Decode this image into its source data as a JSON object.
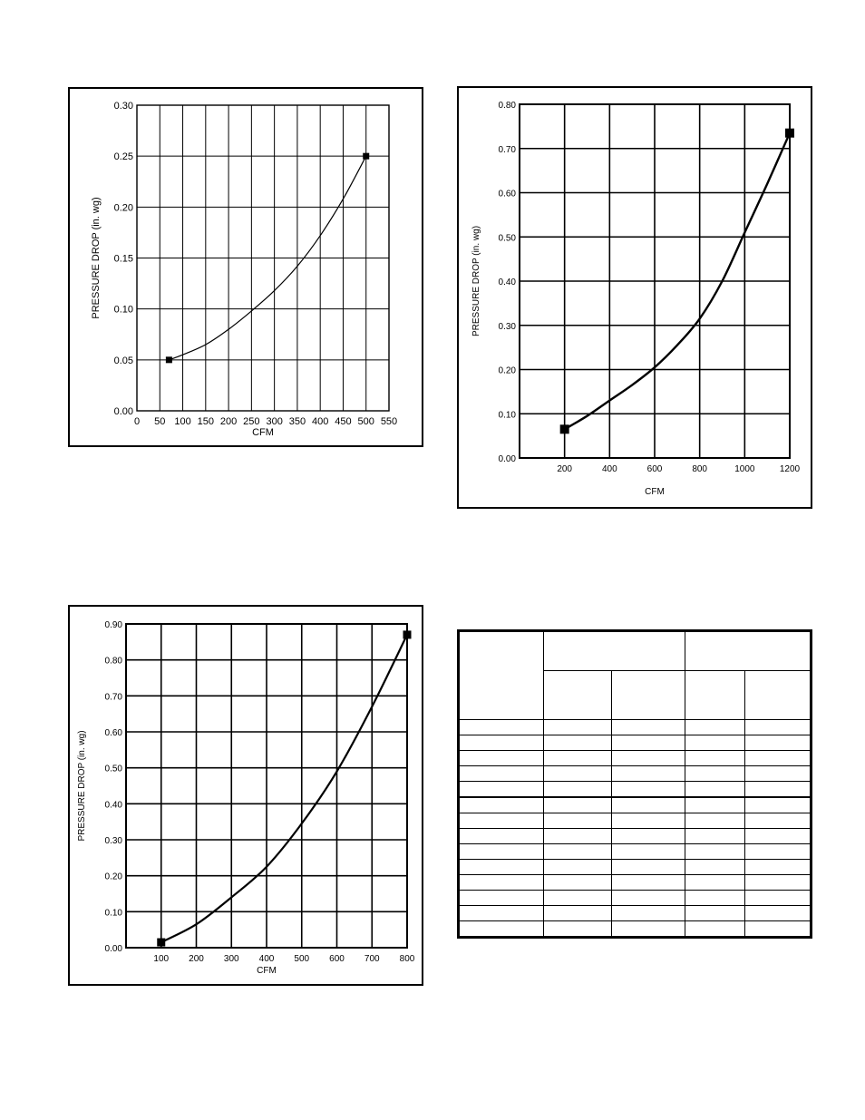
{
  "chart_data": [
    {
      "type": "line",
      "title": "",
      "xlabel": "CFM",
      "ylabel": "PRESSURE DROP (in. wg)",
      "xlim": [
        0,
        550
      ],
      "ylim": [
        0,
        0.3
      ],
      "x_ticks": [
        "0",
        "50",
        "100",
        "150",
        "200",
        "250",
        "300",
        "350",
        "400",
        "450",
        "500",
        "550"
      ],
      "x_tick_values": [
        0,
        50,
        100,
        150,
        200,
        250,
        300,
        350,
        400,
        450,
        500,
        550
      ],
      "y_ticks": [
        "0.00",
        "0.05",
        "0.10",
        "0.15",
        "0.20",
        "0.25",
        "0.30"
      ],
      "y_tick_values": [
        0,
        0.05,
        0.1,
        0.15,
        0.2,
        0.25,
        0.3
      ],
      "grid": true,
      "series": [
        {
          "x": [
            70,
            100,
            150,
            200,
            250,
            300,
            350,
            400,
            450,
            500
          ],
          "y": [
            0.05,
            0.055,
            0.065,
            0.08,
            0.098,
            0.118,
            0.142,
            0.172,
            0.208,
            0.25
          ]
        }
      ],
      "markers": [
        {
          "x": 70,
          "y": 0.05
        },
        {
          "x": 500,
          "y": 0.25
        }
      ]
    },
    {
      "type": "line",
      "title": "",
      "xlabel": "CFM",
      "ylabel": "PRESSURE DROP (in. wg)",
      "xlim": [
        0,
        1200
      ],
      "ylim": [
        0,
        0.8
      ],
      "x_ticks": [
        "200",
        "400",
        "600",
        "800",
        "1000",
        "1200"
      ],
      "x_tick_values": [
        200,
        400,
        600,
        800,
        1000,
        1200
      ],
      "y_ticks": [
        "0.00",
        "0.10",
        "0.20",
        "0.30",
        "0.40",
        "0.50",
        "0.60",
        "0.70",
        "0.80"
      ],
      "y_tick_values": [
        0,
        0.1,
        0.2,
        0.3,
        0.4,
        0.5,
        0.6,
        0.7,
        0.8
      ],
      "grid": true,
      "series": [
        {
          "x": [
            200,
            300,
            400,
            500,
            600,
            700,
            800,
            900,
            1000,
            1100,
            1200
          ],
          "y": [
            0.065,
            0.095,
            0.13,
            0.165,
            0.205,
            0.255,
            0.315,
            0.4,
            0.51,
            0.62,
            0.735
          ]
        }
      ],
      "markers": [
        {
          "x": 200,
          "y": 0.065
        },
        {
          "x": 1200,
          "y": 0.735
        }
      ]
    },
    {
      "type": "line",
      "title": "",
      "xlabel": "CFM",
      "ylabel": "PRESSURE DROP (in. wg)",
      "xlim": [
        0,
        800
      ],
      "ylim": [
        0,
        0.9
      ],
      "x_ticks": [
        "100",
        "200",
        "300",
        "400",
        "500",
        "600",
        "700",
        "800"
      ],
      "x_tick_values": [
        100,
        200,
        300,
        400,
        500,
        600,
        700,
        800
      ],
      "y_ticks": [
        "0.00",
        "0.10",
        "0.20",
        "0.30",
        "0.40",
        "0.50",
        "0.60",
        "0.70",
        "0.80",
        "0.90"
      ],
      "y_tick_values": [
        0,
        0.1,
        0.2,
        0.3,
        0.4,
        0.5,
        0.6,
        0.7,
        0.8,
        0.9
      ],
      "grid": true,
      "series": [
        {
          "x": [
            100,
            200,
            300,
            400,
            500,
            600,
            700,
            800
          ],
          "y": [
            0.015,
            0.065,
            0.14,
            0.225,
            0.345,
            0.49,
            0.67,
            0.87
          ]
        }
      ],
      "markers": [
        {
          "x": 100,
          "y": 0.015
        },
        {
          "x": 800,
          "y": 0.87
        }
      ]
    },
    {
      "type": "table",
      "columns": 5,
      "header_rows": 2,
      "body_rows": 14,
      "thick_separator_after_body_row": 5,
      "cells": []
    }
  ]
}
